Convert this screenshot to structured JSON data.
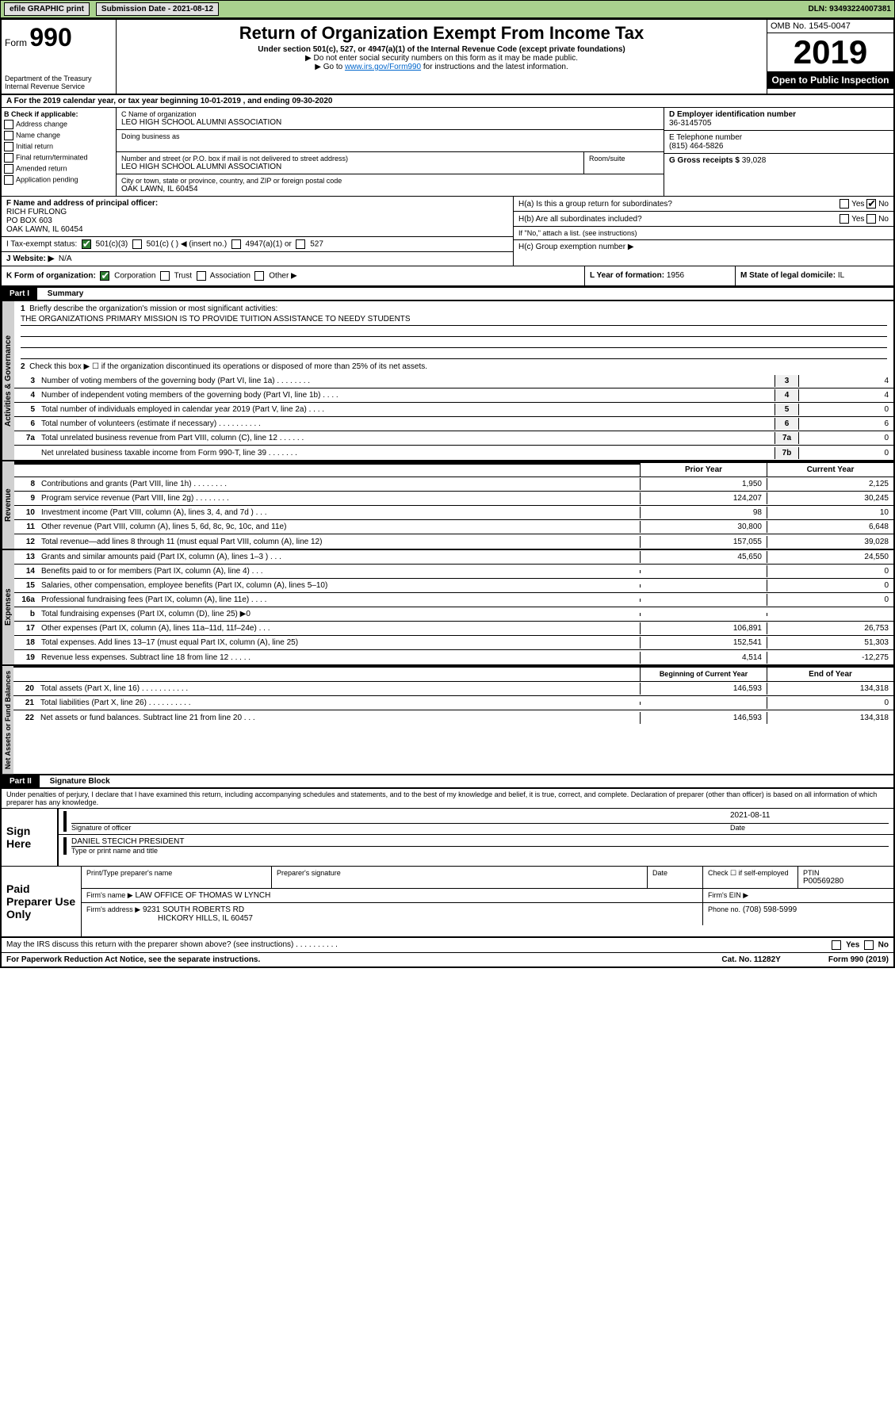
{
  "topbar": {
    "efile": "efile GRAPHIC print",
    "submission": "Submission Date - 2021-08-12",
    "dln": "DLN: 93493224007381"
  },
  "header": {
    "form_label": "Form",
    "form_num": "990",
    "title": "Return of Organization Exempt From Income Tax",
    "sub": "Under section 501(c), 527, or 4947(a)(1) of the Internal Revenue Code (except private foundations)",
    "note1": "▶ Do not enter social security numbers on this form as it may be made public.",
    "note2_pre": "▶ Go to ",
    "note2_link": "www.irs.gov/Form990",
    "note2_post": " for instructions and the latest information.",
    "dept": "Department of the Treasury\nInternal Revenue Service",
    "omb": "OMB No. 1545-0047",
    "year": "2019",
    "open": "Open to Public Inspection"
  },
  "cal_year": "A For the 2019 calendar year, or tax year beginning 10-01-2019   , and ending 09-30-2020",
  "col_b": {
    "title": "B Check if applicable:",
    "opts": [
      "Address change",
      "Name change",
      "Initial return",
      "Final return/terminated",
      "Amended return",
      "Application pending"
    ]
  },
  "col_c": {
    "name_label": "C Name of organization",
    "name": "LEO HIGH SCHOOL ALUMNI ASSOCIATION",
    "dba_label": "Doing business as",
    "addr_label": "Number and street (or P.O. box if mail is not delivered to street address)",
    "room_label": "Room/suite",
    "addr": "LEO HIGH SCHOOL ALUMNI ASSOCIATION",
    "city_label": "City or town, state or province, country, and ZIP or foreign postal code",
    "city": "OAK LAWN, IL  60454"
  },
  "col_d": {
    "label": "D Employer identification number",
    "val": "36-3145705"
  },
  "col_e": {
    "label": "E Telephone number",
    "val": "(815) 464-5826"
  },
  "col_g": {
    "label": "G Gross receipts $",
    "val": "39,028"
  },
  "col_f": {
    "label": "F  Name and address of principal officer:",
    "name": "RICH FURLONG",
    "addr1": "PO BOX 603",
    "addr2": "OAK LAWN, IL  60454"
  },
  "col_h": {
    "ha": "H(a)  Is this a group return for subordinates?",
    "hb": "H(b)  Are all subordinates included?",
    "hb_note": "If \"No,\" attach a list. (see instructions)",
    "hc": "H(c)  Group exemption number ▶",
    "yes": "Yes",
    "no": "No"
  },
  "row_i": {
    "label": "I   Tax-exempt status:",
    "o1": "501(c)(3)",
    "o2": "501(c) (  ) ◀ (insert no.)",
    "o3": "4947(a)(1) or",
    "o4": "527"
  },
  "row_j": {
    "label": "J   Website: ▶",
    "val": "N/A"
  },
  "row_k": {
    "label": "K Form of organization:",
    "o1": "Corporation",
    "o2": "Trust",
    "o3": "Association",
    "o4": "Other ▶",
    "l_label": "L Year of formation:",
    "l_val": "1956",
    "m_label": "M State of legal domicile:",
    "m_val": "IL"
  },
  "part1": {
    "label": "Part I",
    "title": "Summary"
  },
  "summary": {
    "q1": "Briefly describe the organization's mission or most significant activities:",
    "mission": "THE ORGANIZATIONS PRIMARY MISSION IS TO PROVIDE TUITION ASSISTANCE TO NEEDY STUDENTS",
    "q2": "Check this box ▶ ☐  if the organization discontinued its operations or disposed of more than 25% of its net assets.",
    "lines_gov": [
      {
        "n": "3",
        "d": "Number of voting members of the governing body (Part VI, line 1a)  .  .  .  .  .  .  .  .",
        "b": "3",
        "v": "4"
      },
      {
        "n": "4",
        "d": "Number of independent voting members of the governing body (Part VI, line 1b)  .  .  .  .",
        "b": "4",
        "v": "4"
      },
      {
        "n": "5",
        "d": "Total number of individuals employed in calendar year 2019 (Part V, line 2a)  .  .  .  .",
        "b": "5",
        "v": "0"
      },
      {
        "n": "6",
        "d": "Total number of volunteers (estimate if necessary)  .  .  .  .  .  .  .  .  .  .",
        "b": "6",
        "v": "6"
      },
      {
        "n": "7a",
        "d": "Total unrelated business revenue from Part VIII, column (C), line 12  .  .  .  .  .  .",
        "b": "7a",
        "v": "0"
      },
      {
        "n": "",
        "d": "Net unrelated business taxable income from Form 990-T, line 39  .  .  .  .  .  .  .",
        "b": "7b",
        "v": "0"
      }
    ],
    "py": "Prior Year",
    "cy": "Current Year",
    "lines_rev": [
      {
        "n": "8",
        "d": "Contributions and grants (Part VIII, line 1h)  .  .  .  .  .  .  .  .",
        "p": "1,950",
        "c": "2,125"
      },
      {
        "n": "9",
        "d": "Program service revenue (Part VIII, line 2g)  .  .  .  .  .  .  .  .",
        "p": "124,207",
        "c": "30,245"
      },
      {
        "n": "10",
        "d": "Investment income (Part VIII, column (A), lines 3, 4, and 7d )  .  .  .",
        "p": "98",
        "c": "10"
      },
      {
        "n": "11",
        "d": "Other revenue (Part VIII, column (A), lines 5, 6d, 8c, 9c, 10c, and 11e)",
        "p": "30,800",
        "c": "6,648"
      },
      {
        "n": "12",
        "d": "Total revenue—add lines 8 through 11 (must equal Part VIII, column (A), line 12)",
        "p": "157,055",
        "c": "39,028"
      }
    ],
    "lines_exp": [
      {
        "n": "13",
        "d": "Grants and similar amounts paid (Part IX, column (A), lines 1–3 )  .  .  .",
        "p": "45,650",
        "c": "24,550"
      },
      {
        "n": "14",
        "d": "Benefits paid to or for members (Part IX, column (A), line 4)  .  .  .",
        "p": "",
        "c": "0"
      },
      {
        "n": "15",
        "d": "Salaries, other compensation, employee benefits (Part IX, column (A), lines 5–10)",
        "p": "",
        "c": "0"
      },
      {
        "n": "16a",
        "d": "Professional fundraising fees (Part IX, column (A), line 11e)  .  .  .  .",
        "p": "",
        "c": "0"
      },
      {
        "n": "b",
        "d": "Total fundraising expenses (Part IX, column (D), line 25) ▶0",
        "p": "",
        "c": ""
      },
      {
        "n": "17",
        "d": "Other expenses (Part IX, column (A), lines 11a–11d, 11f–24e)  .  .  .",
        "p": "106,891",
        "c": "26,753"
      },
      {
        "n": "18",
        "d": "Total expenses. Add lines 13–17 (must equal Part IX, column (A), line 25)",
        "p": "152,541",
        "c": "51,303"
      },
      {
        "n": "19",
        "d": "Revenue less expenses. Subtract line 18 from line 12  .  .  .  .  .",
        "p": "4,514",
        "c": "-12,275"
      }
    ],
    "boy": "Beginning of Current Year",
    "eoy": "End of Year",
    "lines_net": [
      {
        "n": "20",
        "d": "Total assets (Part X, line 16)  .  .  .  .  .  .  .  .  .  .  .",
        "p": "146,593",
        "c": "134,318"
      },
      {
        "n": "21",
        "d": "Total liabilities (Part X, line 26)  .  .  .  .  .  .  .  .  .  .",
        "p": "",
        "c": "0"
      },
      {
        "n": "22",
        "d": "Net assets or fund balances. Subtract line 21 from line 20  .  .  .",
        "p": "146,593",
        "c": "134,318"
      }
    ],
    "side_gov": "Activities & Governance",
    "side_rev": "Revenue",
    "side_exp": "Expenses",
    "side_net": "Net Assets or Fund Balances"
  },
  "part2": {
    "label": "Part II",
    "title": "Signature Block"
  },
  "sig_disclaimer": "Under penalties of perjury, I declare that I have examined this return, including accompanying schedules and statements, and to the best of my knowledge and belief, it is true, correct, and complete. Declaration of preparer (other than officer) is based on all information of which preparer has any knowledge.",
  "sign": {
    "label": "Sign Here",
    "sig_off": "Signature of officer",
    "date": "2021-08-11",
    "date_label": "Date",
    "name": "DANIEL STECICH  PRESIDENT",
    "name_label": "Type or print name and title"
  },
  "prep": {
    "label": "Paid Preparer Use Only",
    "h1": "Print/Type preparer's name",
    "h2": "Preparer's signature",
    "h3": "Date",
    "h4": "Check ☐ if self-employed",
    "h5": "PTIN",
    "ptin": "P00569280",
    "firm_label": "Firm's name   ▶",
    "firm": "LAW OFFICE OF THOMAS W LYNCH",
    "ein_label": "Firm's EIN ▶",
    "addr_label": "Firm's address ▶",
    "addr1": "9231 SOUTH ROBERTS RD",
    "addr2": "HICKORY HILLS, IL  60457",
    "phone_label": "Phone no.",
    "phone": "(708) 598-5999"
  },
  "discuss": "May the IRS discuss this return with the preparer shown above? (see instructions)  .  .  .  .  .  .  .  .  .  .",
  "footer": {
    "left": "For Paperwork Reduction Act Notice, see the separate instructions.",
    "mid": "Cat. No. 11282Y",
    "right": "Form 990 (2019)"
  }
}
